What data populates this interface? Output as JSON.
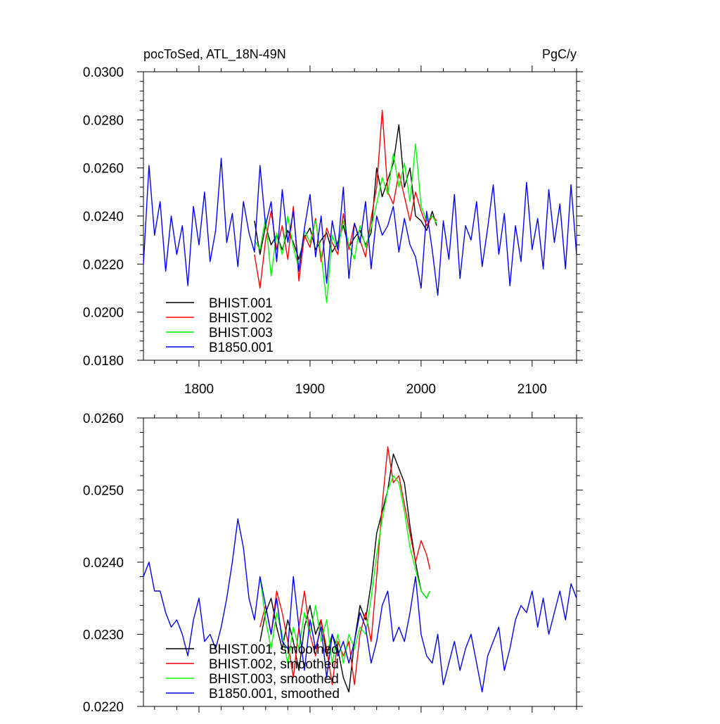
{
  "chart_data": [
    {
      "type": "line",
      "title_left": "pocToSed, ATL_18N-49N",
      "title_right": "PgC/y",
      "xlim": [
        1750,
        2140
      ],
      "ylim": [
        0.018,
        0.03
      ],
      "x_ticks": [
        1800,
        1900,
        2000,
        2100
      ],
      "x_tick_labels": [
        "1800",
        "1900",
        "2000",
        "2100"
      ],
      "y_ticks": [
        0.018,
        0.02,
        0.022,
        0.024,
        0.026,
        0.028,
        0.03
      ],
      "y_tick_labels": [
        "0.0180",
        "0.0200",
        "0.0220",
        "0.0240",
        "0.0260",
        "0.0280",
        "0.0300"
      ],
      "legend_position": "bottom-left",
      "series": [
        {
          "name": "BHIST.001",
          "color": "#000000",
          "x": [
            1850,
            1855,
            1860,
            1865,
            1870,
            1875,
            1880,
            1885,
            1890,
            1895,
            1900,
            1905,
            1910,
            1915,
            1920,
            1925,
            1930,
            1935,
            1940,
            1945,
            1950,
            1955,
            1960,
            1965,
            1970,
            1975,
            1980,
            1985,
            1990,
            1995,
            2000,
            2005,
            2010,
            2014
          ],
          "y": [
            0.0238,
            0.0224,
            0.0236,
            0.0228,
            0.0232,
            0.0226,
            0.0234,
            0.0229,
            0.0222,
            0.0231,
            0.0235,
            0.0226,
            0.023,
            0.0233,
            0.0225,
            0.0229,
            0.0236,
            0.0227,
            0.0231,
            0.0234,
            0.0228,
            0.0233,
            0.026,
            0.0248,
            0.0255,
            0.0262,
            0.0278,
            0.0252,
            0.026,
            0.024,
            0.0238,
            0.0234,
            0.0242,
            0.0236
          ]
        },
        {
          "name": "BHIST.002",
          "color": "#ff0000",
          "x": [
            1850,
            1855,
            1860,
            1865,
            1870,
            1875,
            1880,
            1885,
            1890,
            1895,
            1900,
            1905,
            1910,
            1915,
            1920,
            1925,
            1930,
            1935,
            1940,
            1945,
            1950,
            1955,
            1960,
            1965,
            1970,
            1975,
            1980,
            1985,
            1990,
            1995,
            2000,
            2005,
            2010,
            2014
          ],
          "y": [
            0.0224,
            0.021,
            0.023,
            0.0242,
            0.0226,
            0.0236,
            0.0222,
            0.0244,
            0.0213,
            0.0232,
            0.0227,
            0.0239,
            0.0221,
            0.0235,
            0.0229,
            0.0224,
            0.0241,
            0.0226,
            0.0237,
            0.023,
            0.0223,
            0.0239,
            0.0252,
            0.0284,
            0.025,
            0.0245,
            0.0258,
            0.0248,
            0.0238,
            0.025,
            0.0242,
            0.0236,
            0.024,
            0.0238
          ]
        },
        {
          "name": "BHIST.003",
          "color": "#00ff00",
          "x": [
            1850,
            1855,
            1860,
            1865,
            1870,
            1875,
            1880,
            1885,
            1890,
            1895,
            1900,
            1905,
            1910,
            1915,
            1920,
            1925,
            1930,
            1935,
            1940,
            1945,
            1950,
            1955,
            1960,
            1965,
            1970,
            1975,
            1980,
            1985,
            1990,
            1995,
            2000,
            2005,
            2010,
            2014
          ],
          "y": [
            0.023,
            0.0226,
            0.0239,
            0.0215,
            0.0233,
            0.0224,
            0.024,
            0.0227,
            0.0218,
            0.0234,
            0.0229,
            0.0238,
            0.0224,
            0.0204,
            0.0232,
            0.0226,
            0.0238,
            0.0228,
            0.0222,
            0.0236,
            0.0227,
            0.0235,
            0.0245,
            0.0256,
            0.0249,
            0.0266,
            0.0252,
            0.0262,
            0.0246,
            0.027,
            0.0244,
            0.0238,
            0.024,
            0.0237
          ]
        },
        {
          "name": "B1850.001",
          "color": "#0000ff",
          "x": [
            1750,
            1755,
            1760,
            1765,
            1770,
            1775,
            1780,
            1785,
            1790,
            1795,
            1800,
            1805,
            1810,
            1815,
            1820,
            1825,
            1830,
            1835,
            1840,
            1845,
            1850,
            1855,
            1860,
            1865,
            1870,
            1875,
            1880,
            1885,
            1890,
            1895,
            1900,
            1905,
            1910,
            1915,
            1920,
            1925,
            1930,
            1935,
            1940,
            1945,
            1950,
            1955,
            1960,
            1965,
            1970,
            1975,
            1980,
            1985,
            1990,
            1995,
            2000,
            2005,
            2010,
            2015,
            2020,
            2025,
            2030,
            2035,
            2040,
            2045,
            2050,
            2055,
            2060,
            2065,
            2070,
            2075,
            2080,
            2085,
            2090,
            2095,
            2100,
            2105,
            2110,
            2115,
            2120,
            2125,
            2130,
            2135,
            2140
          ],
          "y": [
            0.022,
            0.0261,
            0.0232,
            0.0246,
            0.0217,
            0.024,
            0.0224,
            0.0236,
            0.0211,
            0.0244,
            0.0228,
            0.025,
            0.0221,
            0.0234,
            0.0264,
            0.0229,
            0.0241,
            0.0219,
            0.0246,
            0.0233,
            0.0225,
            0.0261,
            0.0236,
            0.0246,
            0.0221,
            0.0251,
            0.0229,
            0.0242,
            0.0217,
            0.0235,
            0.0249,
            0.0223,
            0.024,
            0.0212,
            0.0238,
            0.0226,
            0.0252,
            0.0214,
            0.0237,
            0.0229,
            0.0246,
            0.0218,
            0.024,
            0.0232,
            0.0236,
            0.0244,
            0.0225,
            0.0239,
            0.0228,
            0.0223,
            0.021,
            0.0242,
            0.0226,
            0.0207,
            0.0238,
            0.0222,
            0.0249,
            0.0214,
            0.0236,
            0.023,
            0.0246,
            0.0219,
            0.0235,
            0.0253,
            0.0224,
            0.0241,
            0.0211,
            0.0236,
            0.0221,
            0.0254,
            0.0226,
            0.0239,
            0.0218,
            0.0251,
            0.0229,
            0.0245,
            0.0218,
            0.0253,
            0.0224
          ]
        }
      ]
    },
    {
      "type": "line",
      "xlim": [
        1750,
        2140
      ],
      "ylim": [
        0.022,
        0.026
      ],
      "x_ticks": [
        1800,
        1900,
        2000,
        2100
      ],
      "y_ticks": [
        0.022,
        0.023,
        0.024,
        0.025,
        0.026
      ],
      "y_tick_labels": [
        "0.0220",
        "0.0230",
        "0.0240",
        "0.0250",
        "0.0260"
      ],
      "legend_position": "bottom-left",
      "series": [
        {
          "name": "BHIST.001, smoothed",
          "color": "#000000",
          "x": [
            1855,
            1860,
            1865,
            1870,
            1875,
            1880,
            1885,
            1890,
            1895,
            1900,
            1905,
            1910,
            1915,
            1920,
            1925,
            1930,
            1935,
            1940,
            1945,
            1950,
            1955,
            1960,
            1965,
            1970,
            1975,
            1980,
            1985,
            1990,
            1995,
            2000,
            2005,
            2008
          ],
          "y": [
            0.0229,
            0.0233,
            0.0235,
            0.0231,
            0.0228,
            0.0232,
            0.0229,
            0.0225,
            0.0231,
            0.0234,
            0.023,
            0.0232,
            0.0227,
            0.023,
            0.0228,
            0.0224,
            0.0222,
            0.0229,
            0.0234,
            0.0232,
            0.0237,
            0.0244,
            0.0247,
            0.025,
            0.0255,
            0.0253,
            0.0251,
            0.0245,
            0.024,
            0.0236,
            0.0235,
            0.0236
          ]
        },
        {
          "name": "BHIST.002, smoothed",
          "color": "#ff0000",
          "x": [
            1855,
            1860,
            1865,
            1870,
            1875,
            1880,
            1885,
            1890,
            1895,
            1900,
            1905,
            1910,
            1915,
            1920,
            1925,
            1930,
            1935,
            1940,
            1945,
            1950,
            1955,
            1960,
            1965,
            1970,
            1975,
            1980,
            1985,
            1990,
            1995,
            2000,
            2005,
            2008
          ],
          "y": [
            0.0231,
            0.0234,
            0.023,
            0.0236,
            0.0233,
            0.0229,
            0.0224,
            0.0231,
            0.0236,
            0.023,
            0.0227,
            0.0232,
            0.0228,
            0.0223,
            0.0229,
            0.0227,
            0.0229,
            0.0223,
            0.023,
            0.0233,
            0.0229,
            0.0238,
            0.0248,
            0.0256,
            0.0251,
            0.0252,
            0.0248,
            0.0244,
            0.024,
            0.0243,
            0.0241,
            0.0239
          ]
        },
        {
          "name": "BHIST.003, smoothed",
          "color": "#00ff00",
          "x": [
            1855,
            1860,
            1865,
            1870,
            1875,
            1880,
            1885,
            1890,
            1895,
            1900,
            1905,
            1910,
            1915,
            1920,
            1925,
            1930,
            1935,
            1940,
            1945,
            1950,
            1955,
            1960,
            1965,
            1970,
            1975,
            1980,
            1985,
            1990,
            1995,
            2000,
            2005,
            2008
          ],
          "y": [
            0.0238,
            0.0232,
            0.0228,
            0.0233,
            0.023,
            0.0226,
            0.0231,
            0.0228,
            0.0233,
            0.023,
            0.0234,
            0.0229,
            0.0232,
            0.0226,
            0.023,
            0.0226,
            0.023,
            0.0228,
            0.0231,
            0.023,
            0.0235,
            0.0241,
            0.0246,
            0.025,
            0.0252,
            0.0251,
            0.0247,
            0.0242,
            0.0239,
            0.0236,
            0.0235,
            0.0236
          ]
        },
        {
          "name": "B1850.001, smoothed",
          "color": "#0000ff",
          "x": [
            1750,
            1755,
            1760,
            1765,
            1770,
            1775,
            1780,
            1785,
            1790,
            1795,
            1800,
            1805,
            1810,
            1815,
            1820,
            1825,
            1830,
            1835,
            1840,
            1845,
            1850,
            1855,
            1860,
            1865,
            1870,
            1875,
            1880,
            1885,
            1890,
            1895,
            1900,
            1905,
            1910,
            1915,
            1920,
            1925,
            1930,
            1935,
            1940,
            1945,
            1950,
            1955,
            1960,
            1965,
            1970,
            1975,
            1980,
            1985,
            1990,
            1995,
            2000,
            2005,
            2010,
            2015,
            2020,
            2025,
            2030,
            2035,
            2040,
            2045,
            2050,
            2055,
            2060,
            2065,
            2070,
            2075,
            2080,
            2085,
            2090,
            2095,
            2100,
            2105,
            2110,
            2115,
            2120,
            2125,
            2130,
            2135,
            2140
          ],
          "y": [
            0.0238,
            0.024,
            0.0236,
            0.0236,
            0.0233,
            0.0231,
            0.0232,
            0.023,
            0.0227,
            0.0232,
            0.0235,
            0.0229,
            0.023,
            0.0228,
            0.0231,
            0.0235,
            0.024,
            0.0246,
            0.0242,
            0.0235,
            0.0232,
            0.0238,
            0.0234,
            0.023,
            0.0235,
            0.0229,
            0.0228,
            0.0238,
            0.0231,
            0.0225,
            0.0232,
            0.0228,
            0.0231,
            0.0224,
            0.023,
            0.0227,
            0.0229,
            0.0226,
            0.0229,
            0.0233,
            0.0231,
            0.0226,
            0.0229,
            0.0234,
            0.0236,
            0.0229,
            0.0231,
            0.0229,
            0.0233,
            0.0238,
            0.023,
            0.0227,
            0.0226,
            0.023,
            0.0223,
            0.0226,
            0.0229,
            0.0225,
            0.0228,
            0.023,
            0.0226,
            0.0222,
            0.0227,
            0.0229,
            0.0231,
            0.0225,
            0.0228,
            0.0232,
            0.0234,
            0.0233,
            0.0236,
            0.0231,
            0.0235,
            0.023,
            0.0233,
            0.0236,
            0.0232,
            0.0237,
            0.0235
          ]
        }
      ]
    }
  ]
}
